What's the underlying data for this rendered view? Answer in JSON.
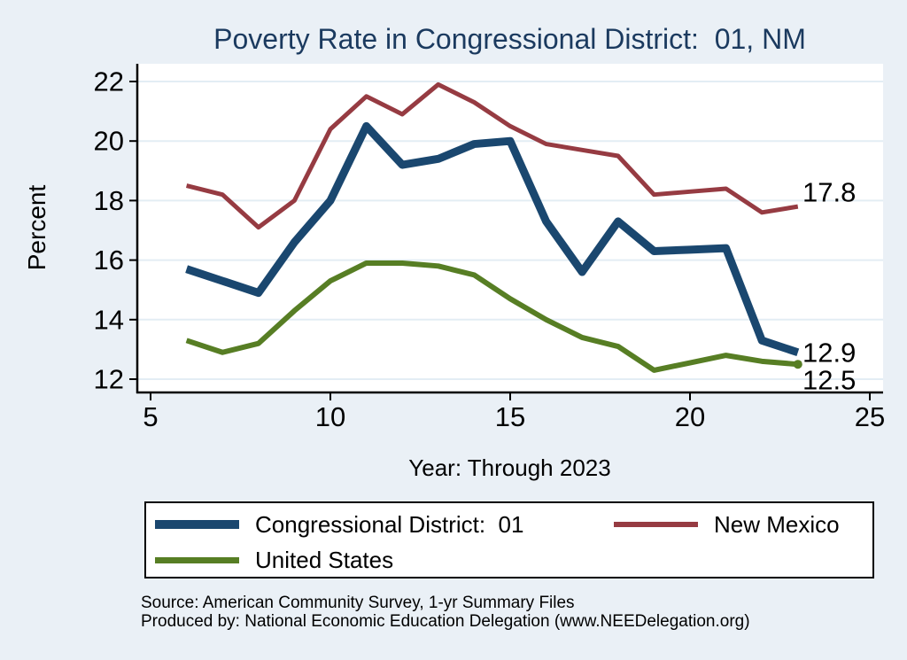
{
  "title": "Poverty Rate in Congressional District:  01, NM",
  "title_color": "#1b3a5f",
  "chart_data": {
    "type": "line",
    "title": "Poverty Rate in Congressional District:  01, NM",
    "xlabel": "Year: Through 2023",
    "ylabel": "Percent",
    "x": [
      6,
      7,
      8,
      9,
      10,
      11,
      12,
      13,
      14,
      15,
      16,
      17,
      18,
      19,
      20,
      21,
      22,
      23
    ],
    "x_ticks": [
      5,
      10,
      15,
      20,
      25
    ],
    "y_ticks": [
      12,
      14,
      16,
      18,
      20,
      22
    ],
    "xlim": [
      5,
      25.4
    ],
    "ylim": [
      11.5,
      22.6
    ],
    "grid": "horizontal",
    "grid_color": "#e3edf4",
    "plot_background": "#ffffff",
    "figure_background": "#eaf0f6",
    "series": [
      {
        "name": "Congressional District:  01",
        "color": "#1a476f",
        "width": 9,
        "values": [
          15.7,
          15.3,
          14.9,
          16.6,
          18.0,
          20.5,
          19.2,
          19.4,
          19.9,
          20.0,
          17.3,
          15.6,
          17.3,
          16.3,
          16.35,
          16.4,
          13.3,
          12.9
        ]
      },
      {
        "name": "New Mexico",
        "color": "#963b42",
        "width": 5,
        "values": [
          18.5,
          18.2,
          17.1,
          18.0,
          20.4,
          21.5,
          20.9,
          21.9,
          21.3,
          20.5,
          19.9,
          19.7,
          19.5,
          18.2,
          18.3,
          18.4,
          17.6,
          17.8
        ]
      },
      {
        "name": "United States",
        "color": "#577e24",
        "width": 6,
        "end_marker": true,
        "values": [
          13.3,
          12.9,
          13.2,
          14.3,
          15.3,
          15.9,
          15.9,
          15.8,
          15.5,
          14.7,
          14.0,
          13.4,
          13.1,
          12.3,
          12.55,
          12.8,
          12.6,
          12.5
        ]
      }
    ],
    "end_labels": [
      {
        "text": "17.8",
        "value": 17.8,
        "series": "New Mexico"
      },
      {
        "text": "12.9",
        "value": 12.9,
        "series": "Congressional District:  01"
      },
      {
        "text": "12.5",
        "value": 12.5,
        "series": "United States"
      }
    ],
    "legend_position": "bottom"
  },
  "legend": {
    "items": [
      {
        "label": "Congressional District:  01",
        "color": "#1a476f"
      },
      {
        "label": "New Mexico",
        "color": "#963b42"
      },
      {
        "label": "United States",
        "color": "#577e24"
      }
    ]
  },
  "source": {
    "line1": "Source: American Community Survey, 1-yr Summary Files",
    "line2": "Produced by: National Economic Education Delegation (www.NEEDelegation.org)"
  }
}
